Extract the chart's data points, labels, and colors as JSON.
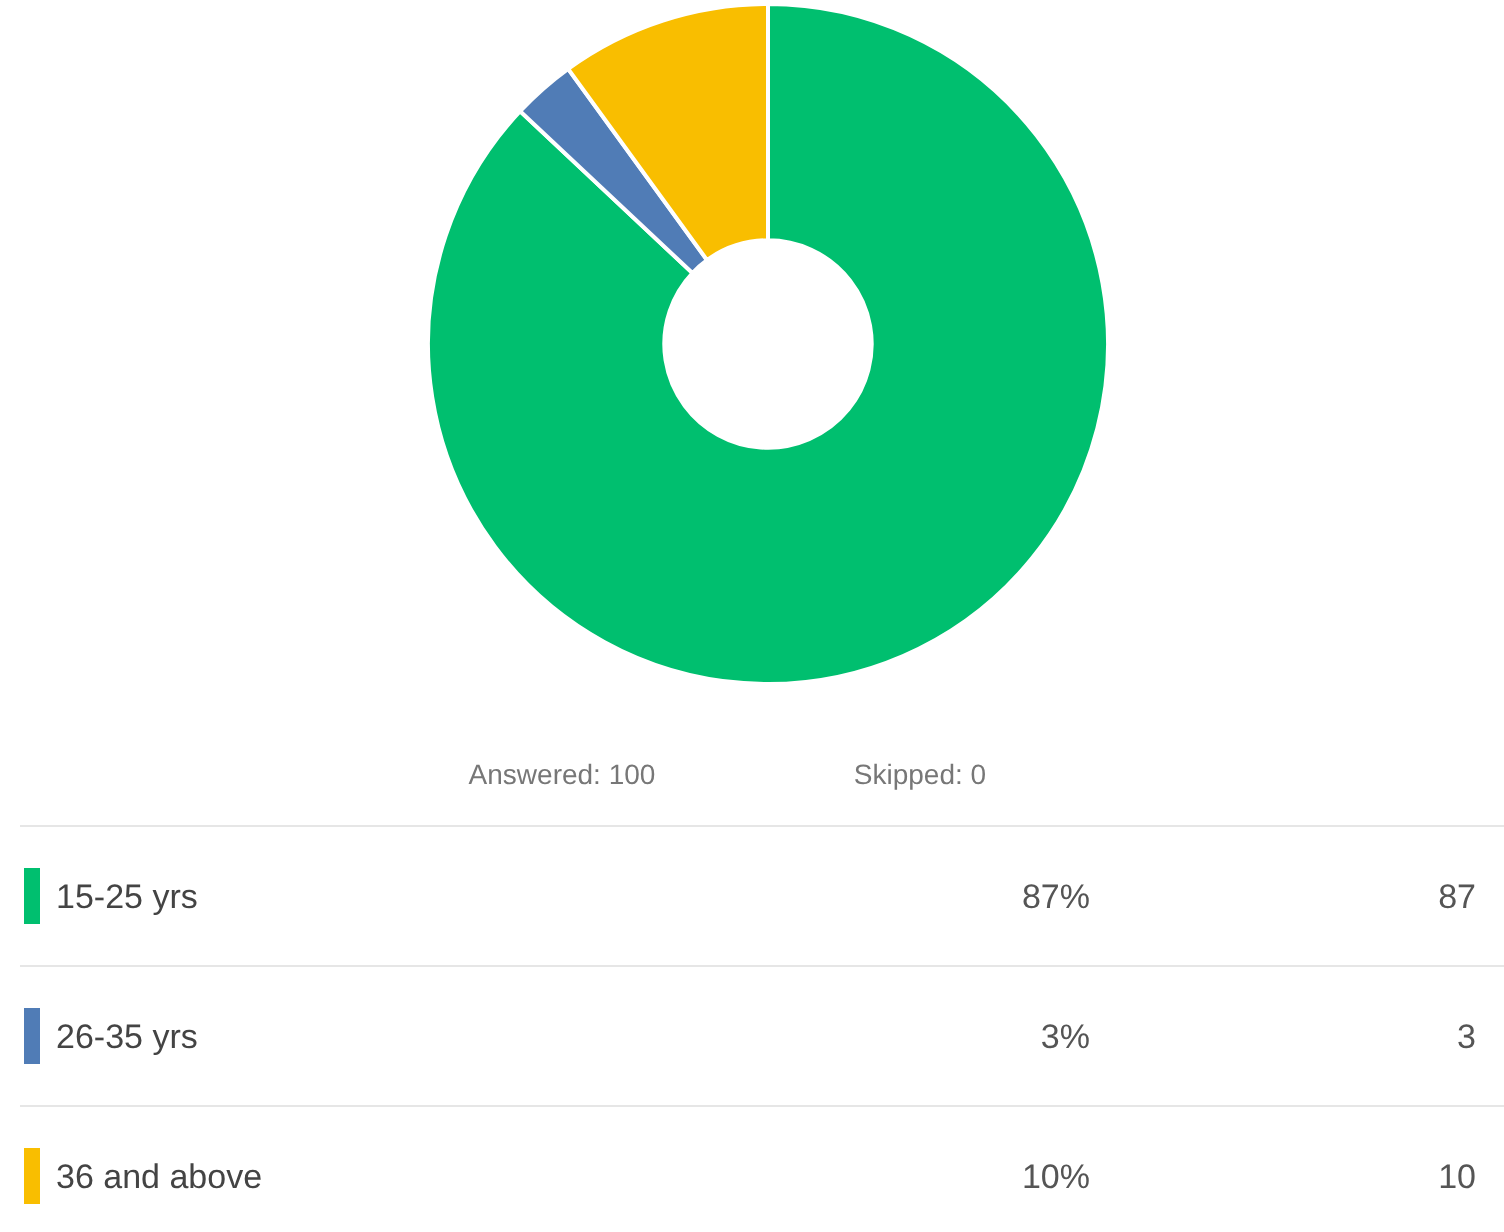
{
  "chart_data": {
    "type": "donut",
    "categories": [
      "15-25 yrs",
      "26-35 yrs",
      "36 and above"
    ],
    "values": [
      87,
      3,
      10
    ],
    "colors": [
      "#00bf6f",
      "#507cb6",
      "#f9be00"
    ],
    "value_labels": [
      "87%",
      "3%",
      "10%"
    ],
    "legend": "bottom",
    "annotations": [
      "Answered: 100",
      "Skipped: 0",
      {
        "text": "87",
        "x": "15-25 yrs"
      },
      {
        "text": "3",
        "x": "26-35 yrs"
      },
      {
        "text": "10",
        "x": "36 and above"
      }
    ]
  }
}
